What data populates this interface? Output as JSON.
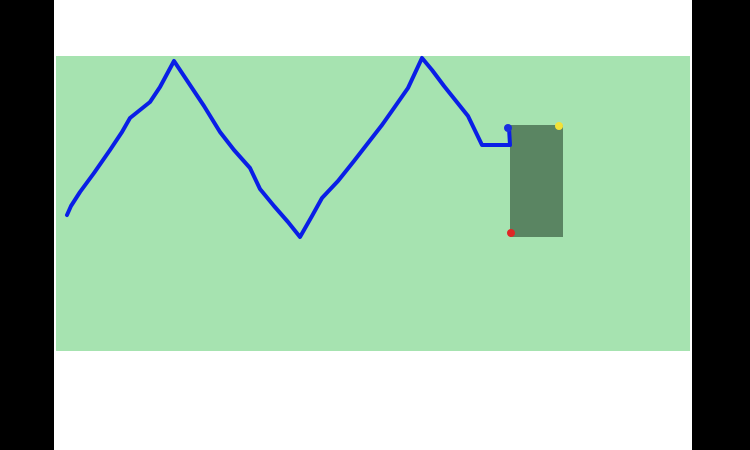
{
  "colors": {
    "letterbox": "#000000",
    "page_background": "#ffffff",
    "play_area": "#a6e3b0",
    "trail": "#0a1ee6",
    "block": "#5a8562",
    "marker_top_left": "#1a2ee0",
    "marker_top_right": "#f2e238",
    "marker_bottom_left": "#e02626"
  },
  "icons": {
    "trail": "drawn-path-line",
    "block": "dark-green-rectangle",
    "corner_markers": [
      "blue-dot-marker",
      "yellow-dot-marker",
      "red-dot-marker"
    ]
  }
}
